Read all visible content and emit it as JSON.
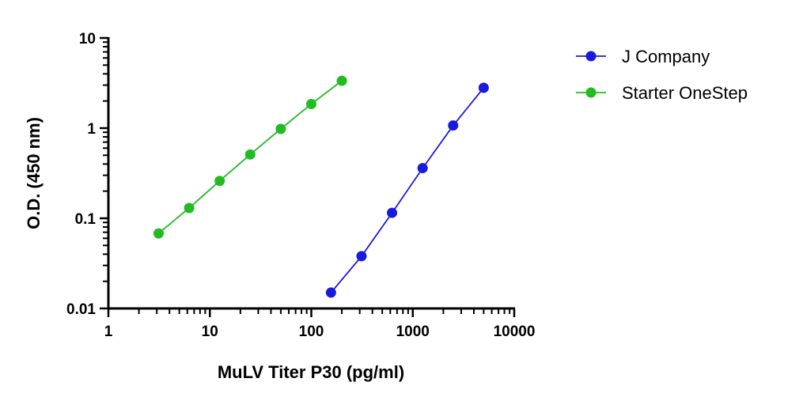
{
  "chart_data": {
    "type": "scatter",
    "title": "",
    "xlabel": "MuLV Titer P30 (pg/ml)",
    "ylabel": "O.D. (450 nm)",
    "x_scale": "log",
    "y_scale": "log",
    "xlim": [
      1,
      10000
    ],
    "ylim": [
      0.01,
      10
    ],
    "x_ticks": [
      "1",
      "10",
      "100",
      "1000",
      "10000"
    ],
    "y_ticks": [
      "0.01",
      "0.1",
      "1",
      "10"
    ],
    "grid": false,
    "legend_position": "right",
    "series": [
      {
        "name": "J Company",
        "color": "#1a1adc",
        "marker": "circle",
        "x": [
          156.25,
          312.5,
          625,
          1250,
          2500,
          5000
        ],
        "y": [
          0.015,
          0.038,
          0.115,
          0.36,
          1.07,
          2.8
        ]
      },
      {
        "name": "Starter OneStep",
        "color": "#22bb22",
        "marker": "circle",
        "x": [
          3.125,
          6.25,
          12.5,
          25,
          50,
          100,
          200
        ],
        "y": [
          0.068,
          0.13,
          0.26,
          0.51,
          0.98,
          1.85,
          3.35
        ]
      }
    ]
  }
}
